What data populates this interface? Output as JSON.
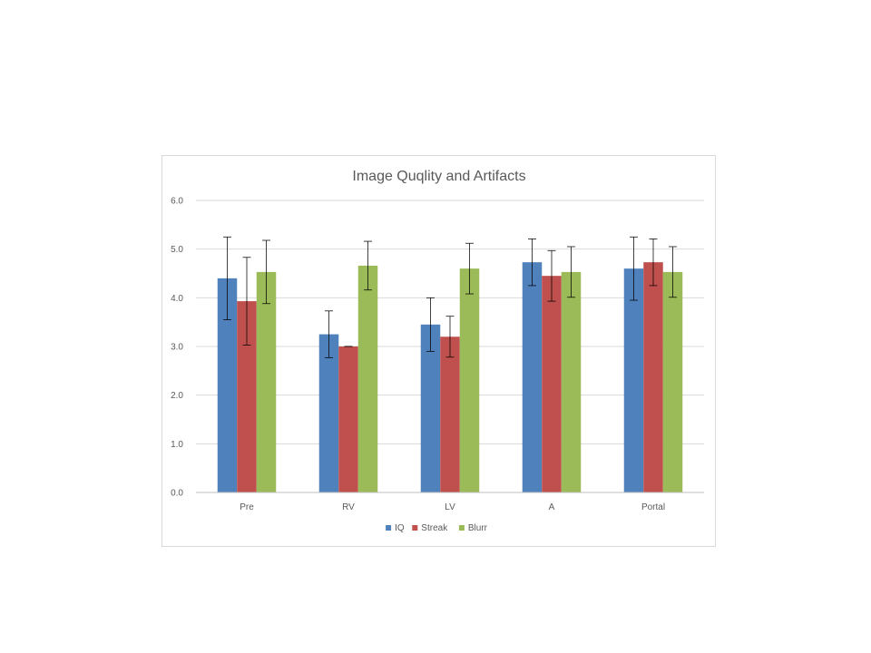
{
  "chart_data": {
    "type": "bar",
    "title": "Image Quqlity and Artifacts",
    "xlabel": "",
    "ylabel": "",
    "ylim": [
      0,
      6
    ],
    "y_ticks": [
      "0.0",
      "1.0",
      "2.0",
      "3.0",
      "4.0",
      "5.0",
      "6.0"
    ],
    "grid": true,
    "legend_position": "bottom",
    "categories": [
      "Pre",
      "RV",
      "LV",
      "A",
      "Portal"
    ],
    "series": [
      {
        "name": "IQ",
        "color": "#4f81bd",
        "values": [
          4.4,
          3.25,
          3.45,
          4.73,
          4.6
        ],
        "error": [
          0.85,
          0.48,
          0.55,
          0.48,
          0.65
        ]
      },
      {
        "name": "Streak",
        "color": "#c0504d",
        "values": [
          3.93,
          3.0,
          3.2,
          4.45,
          4.73
        ],
        "error": [
          0.9,
          0.0,
          0.42,
          0.52,
          0.48
        ]
      },
      {
        "name": "Blurr",
        "color": "#9bbb59",
        "values": [
          4.53,
          4.66,
          4.6,
          4.53,
          4.53
        ],
        "error": [
          0.65,
          0.5,
          0.52,
          0.52,
          0.52
        ]
      }
    ],
    "colors": {
      "grid": "#d9d9d9",
      "axis": "#bfbfbf",
      "error_bar": "#000000",
      "text": "#595959"
    }
  }
}
